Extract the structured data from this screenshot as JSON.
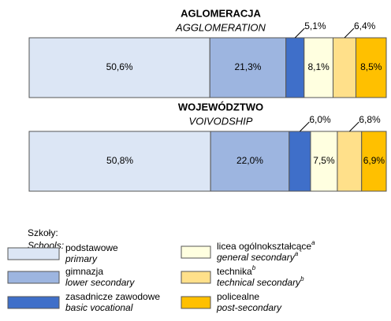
{
  "chart_data": {
    "type": "bar",
    "horizontal": true,
    "stacked": true,
    "categories": [
      "AGLOMERACJA",
      "WOJEWÓDZTWO"
    ],
    "category_subtitles": [
      "AGGLOMERATION",
      "VOIVODSHIP"
    ],
    "xlim": [
      0,
      100
    ],
    "legend_title": "Szkoły:",
    "legend_subtitle": "Schools:",
    "series": [
      {
        "name": "podstawowe",
        "name_en": "primary",
        "color": "#dce6f5",
        "values": [
          50.6,
          50.8
        ],
        "value_labels": [
          "50,6%",
          "50,8%"
        ]
      },
      {
        "name": "gimnazja",
        "name_en": "lower secondary",
        "color": "#9db5e0",
        "values": [
          21.3,
          22.0
        ],
        "value_labels": [
          "21,3%",
          "22,0%"
        ]
      },
      {
        "name": "zasadnicze zawodowe",
        "name_en": "basic vocational",
        "color": "#3f6fc9",
        "values": [
          5.1,
          6.0
        ],
        "value_labels": [
          "5,1%",
          "6,0%"
        ],
        "label_outside": true
      },
      {
        "name": "licea ogólnokształcące",
        "name_en": "general secondary",
        "note": "a",
        "color": "#ffffe0",
        "values": [
          8.1,
          7.5
        ],
        "value_labels": [
          "8,1%",
          "7,5%"
        ]
      },
      {
        "name": "technika",
        "name_en": "technical secondary",
        "note": "b",
        "color": "#ffe08a",
        "values": [
          6.4,
          6.8
        ],
        "value_labels": [
          "6,4%",
          "6,8%"
        ],
        "label_outside": true
      },
      {
        "name": "policealne",
        "name_en": "post-secondary",
        "color": "#ffc000",
        "values": [
          8.5,
          6.9
        ],
        "value_labels": [
          "8,5%",
          "6,9%"
        ]
      }
    ]
  }
}
